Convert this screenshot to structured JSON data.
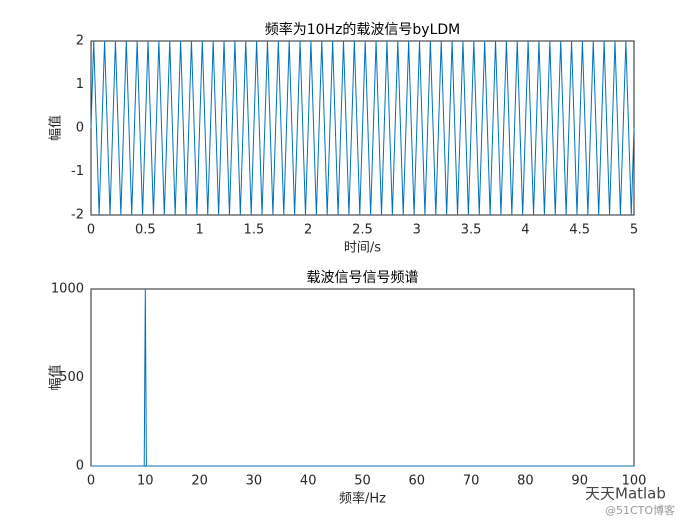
{
  "chart_data": [
    {
      "type": "line",
      "title": "频率为10Hz的载波信号byLDM",
      "x_label": "时间/s",
      "y_label": "幅值",
      "x": [
        0,
        0.025,
        0.075,
        0.125,
        0.175,
        0.225,
        0.275,
        0.325,
        0.375,
        0.425,
        0.475,
        0.525,
        0.575,
        0.625,
        0.675,
        0.725,
        0.775,
        0.825,
        0.875,
        0.925,
        0.975,
        1.025,
        1.075,
        1.125,
        1.175,
        1.225,
        1.275,
        1.325,
        1.375,
        1.425,
        1.475,
        1.525,
        1.575,
        1.625,
        1.675,
        1.725,
        1.775,
        1.825,
        1.875,
        1.925,
        1.975,
        2.025,
        2.075,
        2.125,
        2.175,
        2.225,
        2.275,
        2.325,
        2.375,
        2.425,
        2.475,
        2.525,
        2.575,
        2.625,
        2.675,
        2.725,
        2.775,
        2.825,
        2.875,
        2.925,
        2.975,
        3.025,
        3.075,
        3.125,
        3.175,
        3.225,
        3.275,
        3.325,
        3.375,
        3.425,
        3.475,
        3.525,
        3.575,
        3.625,
        3.675,
        3.725,
        3.775,
        3.825,
        3.875,
        3.925,
        3.975,
        4.025,
        4.075,
        4.125,
        4.175,
        4.225,
        4.275,
        4.325,
        4.375,
        4.425,
        4.475,
        4.525,
        4.575,
        4.625,
        4.675,
        4.725,
        4.775,
        4.825,
        4.875,
        4.925,
        4.975,
        5
      ],
      "series": [
        {
          "color": "#0072bd",
          "values": [
            0,
            2,
            -2,
            2,
            -2,
            2,
            -2,
            2,
            -2,
            2,
            -2,
            2,
            -2,
            2,
            -2,
            2,
            -2,
            2,
            -2,
            2,
            -2,
            2,
            -2,
            2,
            -2,
            2,
            -2,
            2,
            -2,
            2,
            -2,
            2,
            -2,
            2,
            -2,
            2,
            -2,
            2,
            -2,
            2,
            -2,
            2,
            -2,
            2,
            -2,
            2,
            -2,
            2,
            -2,
            2,
            -2,
            2,
            -2,
            2,
            -2,
            2,
            -2,
            2,
            -2,
            2,
            -2,
            2,
            -2,
            2,
            -2,
            2,
            -2,
            2,
            -2,
            2,
            -2,
            2,
            -2,
            2,
            -2,
            2,
            -2,
            2,
            -2,
            2,
            -2,
            2,
            -2,
            2,
            -2,
            2,
            -2,
            2,
            -2,
            2,
            -2,
            2,
            -2,
            2,
            -2,
            2,
            -2,
            2,
            -2,
            2,
            -2,
            0
          ]
        }
      ],
      "xlim": [
        0,
        5
      ],
      "xticks": [
        0,
        0.5,
        1,
        1.5,
        2,
        2.5,
        3,
        3.5,
        4,
        4.5,
        5
      ],
      "ylim": [
        -2,
        2
      ],
      "yticks": [
        -2,
        -1,
        0,
        1,
        2
      ],
      "grid": true
    },
    {
      "type": "line",
      "title": "载波信号信号频谱",
      "x_label": "频率/Hz",
      "y_label": "幅值",
      "x": [
        0,
        9.8,
        10,
        10.2,
        100
      ],
      "series": [
        {
          "color": "#0072bd",
          "values": [
            0,
            0,
            1000,
            0,
            0
          ]
        }
      ],
      "xlim": [
        0,
        100
      ],
      "xticks": [
        0,
        10,
        20,
        30,
        40,
        50,
        60,
        70,
        80,
        90,
        100
      ],
      "ylim": [
        0,
        1000
      ],
      "yticks": [
        0,
        500,
        1000
      ],
      "grid": true
    }
  ],
  "watermark": {
    "name": "天天Matlab",
    "source": "@51CTO博客"
  }
}
